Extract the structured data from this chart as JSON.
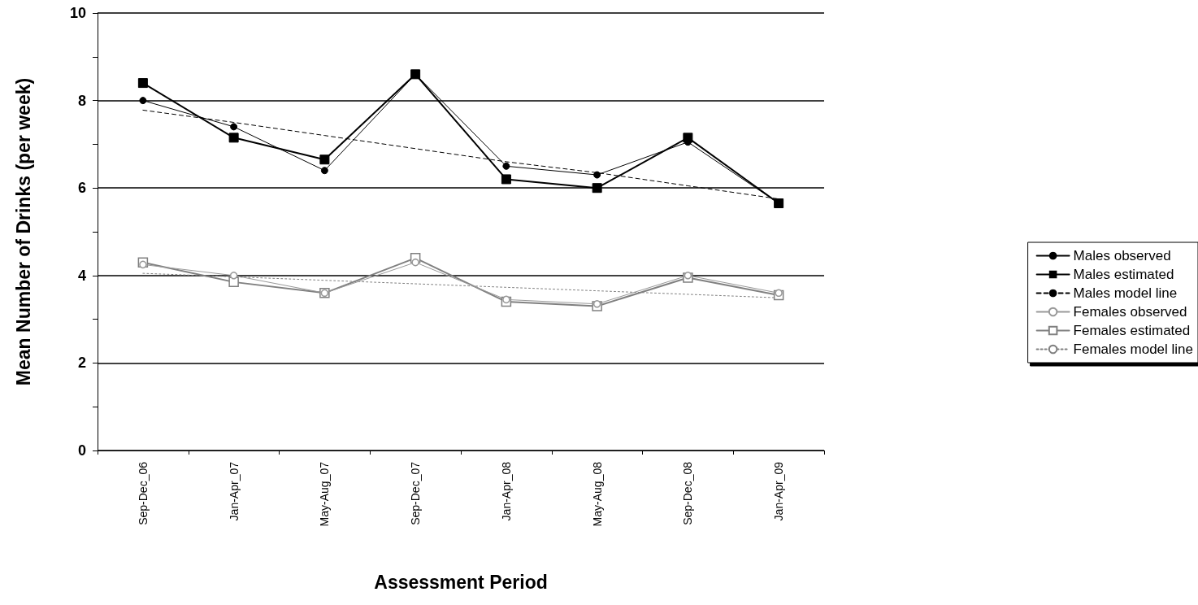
{
  "chart_data": {
    "type": "line",
    "xlabel": "Assessment Period",
    "ylabel": "Mean Number of Drinks (per week)",
    "categories": [
      "Sep-Dec_06",
      "Jan-Apr_07",
      "May-Aug_07",
      "Sep-Dec_07",
      "Jan-Apr_08",
      "May-Aug_08",
      "Sep-Dec_08",
      "Jan-Apr_09"
    ],
    "series": [
      {
        "name": "Males observed",
        "color": "#000000",
        "marker": "circle",
        "line_style": "solid",
        "values": [
          8.0,
          7.4,
          6.4,
          8.6,
          6.5,
          6.3,
          7.05,
          5.65
        ]
      },
      {
        "name": "Males estimated",
        "color": "#000000",
        "marker": "square",
        "line_style": "solid",
        "values": [
          8.4,
          7.15,
          6.65,
          8.6,
          6.2,
          6.0,
          7.15,
          5.65
        ]
      },
      {
        "name": "Males model line",
        "color": "#000000",
        "marker": "none",
        "line_style": "dashed",
        "values": [
          7.78,
          7.5,
          7.2,
          6.9,
          6.6,
          6.35,
          6.05,
          5.75
        ]
      },
      {
        "name": "Females observed",
        "color": "#999999",
        "marker": "circle",
        "line_style": "solid",
        "values": [
          4.25,
          4.0,
          3.6,
          4.3,
          3.45,
          3.35,
          4.0,
          3.6
        ]
      },
      {
        "name": "Females estimated",
        "color": "#808080",
        "marker": "square",
        "line_style": "solid",
        "values": [
          4.3,
          3.85,
          3.6,
          4.4,
          3.4,
          3.3,
          3.95,
          3.55
        ]
      },
      {
        "name": "Females model line",
        "color": "#808080",
        "marker": "none",
        "line_style": "dotted",
        "values": [
          4.05,
          3.97,
          3.89,
          3.81,
          3.73,
          3.65,
          3.57,
          3.49
        ]
      }
    ],
    "ylim": [
      0,
      10
    ],
    "yticks": [
      0,
      {
        "value": 1,
        "label": null
      },
      2,
      {
        "value": 3,
        "label": null
      },
      4,
      {
        "value": 5,
        "label": null
      },
      6,
      {
        "value": 7,
        "label": null
      },
      8,
      {
        "value": 9,
        "label": null
      },
      10
    ],
    "grid": "y",
    "legend": "right"
  }
}
